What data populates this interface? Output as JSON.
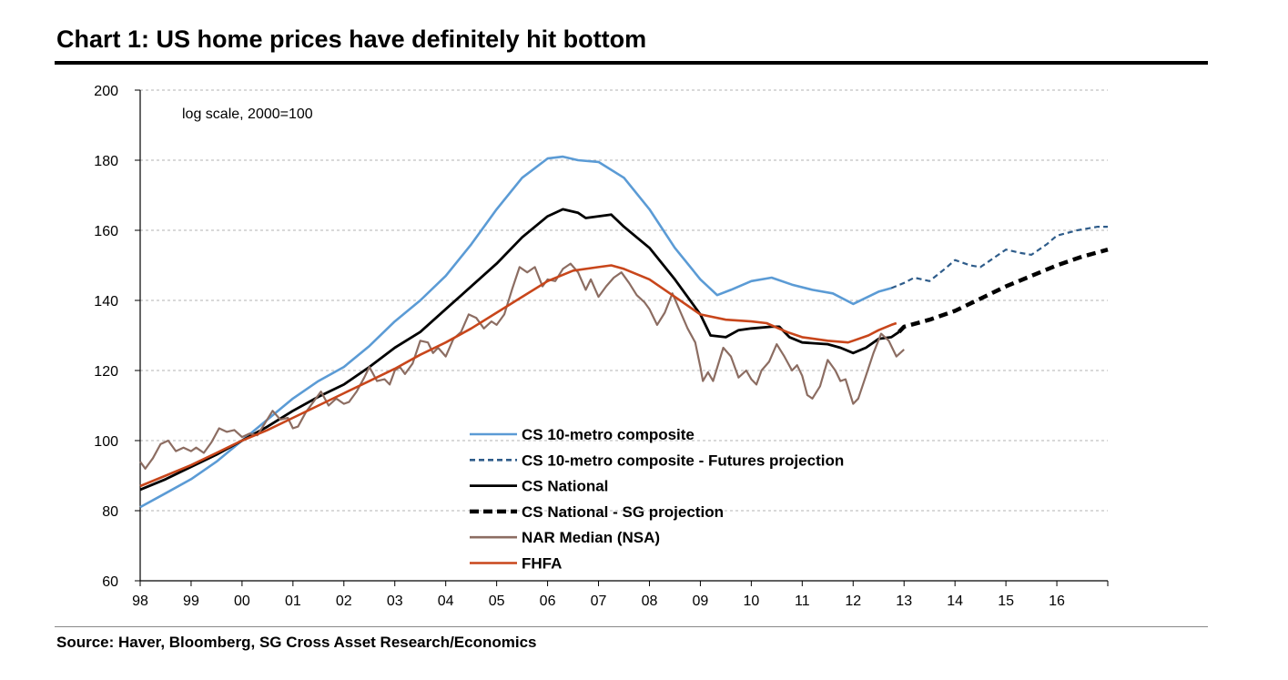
{
  "title": "Chart 1: US home prices have definitely hit bottom",
  "source": "Source: Haver, Bloomberg, SG Cross Asset Research/Economics",
  "chart_data": {
    "type": "line",
    "title": "Chart 1: US home prices have definitely hit bottom",
    "note": "log scale, 2000=100",
    "xlabel": "",
    "ylabel": "",
    "ylim": [
      60,
      200
    ],
    "xlim": [
      1998,
      2017
    ],
    "yticks": [
      60,
      80,
      100,
      120,
      140,
      160,
      180,
      200
    ],
    "xtick_labels": [
      "98",
      "99",
      "00",
      "01",
      "02",
      "03",
      "04",
      "05",
      "06",
      "07",
      "08",
      "09",
      "10",
      "11",
      "12",
      "13",
      "14",
      "15",
      "16"
    ],
    "grid": "horizontal dashed",
    "legend_position": "center-bottom",
    "series": [
      {
        "name": "CS 10-metro composite",
        "color": "#5b9bd5",
        "style": "solid",
        "points": [
          [
            1998.0,
            81
          ],
          [
            1998.5,
            85
          ],
          [
            1999.0,
            89
          ],
          [
            1999.5,
            94
          ],
          [
            2000.0,
            100
          ],
          [
            2000.5,
            106
          ],
          [
            2001.0,
            112
          ],
          [
            2001.5,
            117
          ],
          [
            2002.0,
            121
          ],
          [
            2002.5,
            127
          ],
          [
            2003.0,
            134
          ],
          [
            2003.5,
            140
          ],
          [
            2004.0,
            147
          ],
          [
            2004.5,
            156
          ],
          [
            2005.0,
            166
          ],
          [
            2005.5,
            175
          ],
          [
            2006.0,
            180.5
          ],
          [
            2006.3,
            181
          ],
          [
            2006.6,
            180
          ],
          [
            2007.0,
            179.5
          ],
          [
            2007.5,
            175
          ],
          [
            2008.0,
            166
          ],
          [
            2008.5,
            155
          ],
          [
            2009.0,
            146
          ],
          [
            2009.33,
            141.5
          ],
          [
            2009.6,
            143
          ],
          [
            2010.0,
            145.5
          ],
          [
            2010.4,
            146.5
          ],
          [
            2010.8,
            144.5
          ],
          [
            2011.2,
            143
          ],
          [
            2011.6,
            142
          ],
          [
            2012.0,
            139
          ],
          [
            2012.5,
            142.5
          ],
          [
            2012.75,
            143.5
          ]
        ]
      },
      {
        "name": "CS 10-metro composite - Futures projection",
        "color": "#2e5c8a",
        "style": "dashed",
        "points": [
          [
            2012.75,
            143.5
          ],
          [
            2013.0,
            145
          ],
          [
            2013.2,
            146.5
          ],
          [
            2013.5,
            145.5
          ],
          [
            2013.8,
            149
          ],
          [
            2014.0,
            151.5
          ],
          [
            2014.3,
            150
          ],
          [
            2014.5,
            149.5
          ],
          [
            2014.8,
            152.5
          ],
          [
            2015.0,
            154.5
          ],
          [
            2015.3,
            153.5
          ],
          [
            2015.5,
            153
          ],
          [
            2015.8,
            156
          ],
          [
            2016.0,
            158.5
          ],
          [
            2016.4,
            160
          ],
          [
            2016.8,
            161
          ],
          [
            2017.0,
            161
          ]
        ]
      },
      {
        "name": "CS National",
        "color": "#000000",
        "style": "solid",
        "points": [
          [
            1998.0,
            86
          ],
          [
            1998.5,
            89
          ],
          [
            1999.0,
            92.5
          ],
          [
            1999.5,
            96
          ],
          [
            2000.0,
            100
          ],
          [
            2000.5,
            104
          ],
          [
            2001.0,
            108.5
          ],
          [
            2001.5,
            112.5
          ],
          [
            2002.0,
            116
          ],
          [
            2002.5,
            121
          ],
          [
            2003.0,
            126.5
          ],
          [
            2003.5,
            131
          ],
          [
            2004.0,
            137.5
          ],
          [
            2004.5,
            144
          ],
          [
            2005.0,
            150.5
          ],
          [
            2005.5,
            158
          ],
          [
            2006.0,
            164
          ],
          [
            2006.3,
            166
          ],
          [
            2006.6,
            165
          ],
          [
            2006.75,
            163.5
          ],
          [
            2007.0,
            164
          ],
          [
            2007.25,
            164.5
          ],
          [
            2007.5,
            161
          ],
          [
            2008.0,
            155
          ],
          [
            2008.5,
            146
          ],
          [
            2009.0,
            136
          ],
          [
            2009.2,
            130
          ],
          [
            2009.5,
            129.5
          ],
          [
            2009.75,
            131.5
          ],
          [
            2010.0,
            132
          ],
          [
            2010.4,
            132.5
          ],
          [
            2010.55,
            132.5
          ],
          [
            2010.75,
            129.5
          ],
          [
            2011.0,
            128
          ],
          [
            2011.5,
            127.5
          ],
          [
            2011.75,
            126.5
          ],
          [
            2012.0,
            125
          ],
          [
            2012.25,
            126.5
          ],
          [
            2012.5,
            129
          ],
          [
            2012.75,
            129.5
          ],
          [
            2012.9,
            131
          ]
        ]
      },
      {
        "name": "CS National - SG projection",
        "color": "#000000",
        "style": "dashed",
        "points": [
          [
            2012.9,
            131
          ],
          [
            2013.0,
            132.5
          ],
          [
            2013.5,
            134.5
          ],
          [
            2014.0,
            137
          ],
          [
            2014.5,
            140.5
          ],
          [
            2015.0,
            144
          ],
          [
            2015.5,
            147
          ],
          [
            2016.0,
            150
          ],
          [
            2016.5,
            152.5
          ],
          [
            2017.0,
            154.5
          ]
        ]
      },
      {
        "name": "NAR Median (NSA)",
        "color": "#8c6d62",
        "style": "solid",
        "points": [
          [
            1998.0,
            94
          ],
          [
            1998.1,
            92
          ],
          [
            1998.25,
            95
          ],
          [
            1998.4,
            99
          ],
          [
            1998.55,
            100
          ],
          [
            1998.7,
            97
          ],
          [
            1998.85,
            98
          ],
          [
            1999.0,
            97
          ],
          [
            1999.1,
            98
          ],
          [
            1999.25,
            96.5
          ],
          [
            1999.4,
            99.5
          ],
          [
            1999.55,
            103.5
          ],
          [
            1999.7,
            102.5
          ],
          [
            1999.85,
            103
          ],
          [
            2000.0,
            101
          ],
          [
            2000.15,
            102
          ],
          [
            2000.3,
            101.5
          ],
          [
            2000.45,
            105
          ],
          [
            2000.6,
            108.5
          ],
          [
            2000.75,
            106
          ],
          [
            2000.9,
            106.5
          ],
          [
            2001.0,
            103.5
          ],
          [
            2001.1,
            104
          ],
          [
            2001.25,
            108
          ],
          [
            2001.4,
            111
          ],
          [
            2001.55,
            114
          ],
          [
            2001.7,
            110
          ],
          [
            2001.85,
            112
          ],
          [
            2002.0,
            110.5
          ],
          [
            2002.1,
            111
          ],
          [
            2002.25,
            114
          ],
          [
            2002.4,
            118
          ],
          [
            2002.5,
            121
          ],
          [
            2002.65,
            117
          ],
          [
            2002.8,
            117.5
          ],
          [
            2002.9,
            116
          ],
          [
            2003.0,
            120
          ],
          [
            2003.1,
            121
          ],
          [
            2003.2,
            119
          ],
          [
            2003.35,
            122
          ],
          [
            2003.5,
            128.5
          ],
          [
            2003.65,
            128
          ],
          [
            2003.75,
            125
          ],
          [
            2003.85,
            126.5
          ],
          [
            2004.0,
            124
          ],
          [
            2004.15,
            129
          ],
          [
            2004.3,
            131
          ],
          [
            2004.45,
            136
          ],
          [
            2004.6,
            135
          ],
          [
            2004.75,
            132
          ],
          [
            2004.9,
            134
          ],
          [
            2005.0,
            133
          ],
          [
            2005.15,
            136
          ],
          [
            2005.3,
            143
          ],
          [
            2005.45,
            149.5
          ],
          [
            2005.6,
            148
          ],
          [
            2005.75,
            149.5
          ],
          [
            2005.9,
            144
          ],
          [
            2006.0,
            146
          ],
          [
            2006.15,
            145.5
          ],
          [
            2006.3,
            149
          ],
          [
            2006.45,
            150.5
          ],
          [
            2006.6,
            148
          ],
          [
            2006.75,
            143
          ],
          [
            2006.85,
            146
          ],
          [
            2007.0,
            141
          ],
          [
            2007.15,
            144
          ],
          [
            2007.3,
            146.5
          ],
          [
            2007.45,
            148
          ],
          [
            2007.6,
            145
          ],
          [
            2007.75,
            141.5
          ],
          [
            2007.9,
            139.5
          ],
          [
            2008.0,
            137.5
          ],
          [
            2008.15,
            133
          ],
          [
            2008.3,
            136.5
          ],
          [
            2008.45,
            142
          ],
          [
            2008.6,
            137
          ],
          [
            2008.75,
            132
          ],
          [
            2008.9,
            128
          ],
          [
            2009.0,
            121
          ],
          [
            2009.05,
            117
          ],
          [
            2009.15,
            119.5
          ],
          [
            2009.25,
            117
          ],
          [
            2009.45,
            126.5
          ],
          [
            2009.6,
            124
          ],
          [
            2009.75,
            118
          ],
          [
            2009.9,
            120
          ],
          [
            2010.0,
            117.5
          ],
          [
            2010.1,
            116
          ],
          [
            2010.2,
            120
          ],
          [
            2010.35,
            122.5
          ],
          [
            2010.5,
            127.5
          ],
          [
            2010.65,
            124
          ],
          [
            2010.8,
            120
          ],
          [
            2010.9,
            121.5
          ],
          [
            2011.0,
            118.5
          ],
          [
            2011.1,
            113
          ],
          [
            2011.2,
            112
          ],
          [
            2011.35,
            115.5
          ],
          [
            2011.5,
            123
          ],
          [
            2011.65,
            120
          ],
          [
            2011.75,
            117
          ],
          [
            2011.85,
            117.5
          ],
          [
            2012.0,
            110.5
          ],
          [
            2012.1,
            112
          ],
          [
            2012.25,
            118.5
          ],
          [
            2012.4,
            125
          ],
          [
            2012.55,
            130.5
          ],
          [
            2012.7,
            128.5
          ],
          [
            2012.85,
            124
          ],
          [
            2013.0,
            126
          ]
        ]
      },
      {
        "name": "FHFA",
        "color": "#c8461b",
        "style": "solid",
        "points": [
          [
            1998.0,
            87
          ],
          [
            1998.5,
            90
          ],
          [
            1999.0,
            93
          ],
          [
            1999.5,
            96.5
          ],
          [
            2000.0,
            100
          ],
          [
            2000.5,
            103
          ],
          [
            2001.0,
            106.5
          ],
          [
            2001.5,
            110
          ],
          [
            2002.0,
            113.5
          ],
          [
            2002.5,
            117
          ],
          [
            2003.0,
            120.5
          ],
          [
            2003.5,
            124.5
          ],
          [
            2004.0,
            128
          ],
          [
            2004.5,
            132
          ],
          [
            2005.0,
            136.5
          ],
          [
            2005.5,
            141
          ],
          [
            2006.0,
            145.5
          ],
          [
            2006.5,
            148.5
          ],
          [
            2007.0,
            149.5
          ],
          [
            2007.25,
            150
          ],
          [
            2007.5,
            149
          ],
          [
            2008.0,
            146
          ],
          [
            2008.5,
            141
          ],
          [
            2009.0,
            136
          ],
          [
            2009.5,
            134.5
          ],
          [
            2010.0,
            134
          ],
          [
            2010.3,
            133.5
          ],
          [
            2010.7,
            131
          ],
          [
            2011.0,
            129.5
          ],
          [
            2011.5,
            128.5
          ],
          [
            2011.9,
            128
          ],
          [
            2012.0,
            128.5
          ],
          [
            2012.3,
            130
          ],
          [
            2012.5,
            131.5
          ],
          [
            2012.75,
            133
          ],
          [
            2012.85,
            133.5
          ]
        ]
      }
    ]
  }
}
